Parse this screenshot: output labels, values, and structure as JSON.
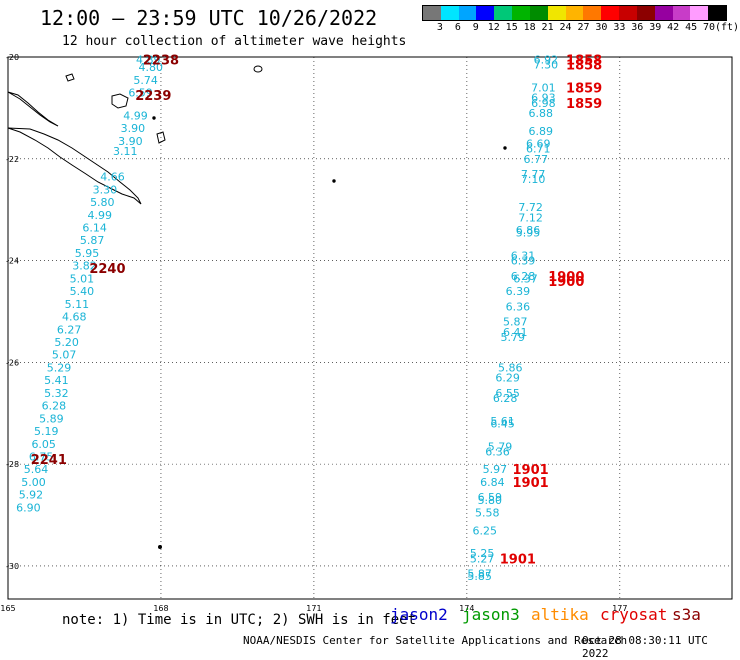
{
  "title": "12:00 — 23:59 UTC 10/26/2022",
  "subtitle": "12 hour collection of altimeter wave heights",
  "legend": {
    "colors": [
      "#777777",
      "#00e5ff",
      "#00a5ff",
      "#0000ff",
      "#00c878",
      "#00b400",
      "#008c00",
      "#f0e600",
      "#ffb400",
      "#ff7800",
      "#ff0000",
      "#c80000",
      "#8c0000",
      "#9600a0",
      "#c83cc8",
      "#ff9cff",
      "#000000"
    ],
    "tick_labels": [
      "3",
      "6",
      "9",
      "12",
      "15",
      "18",
      "21",
      "24",
      "27",
      "30",
      "33",
      "36",
      "39",
      "42",
      "45",
      "70",
      "(ft)"
    ]
  },
  "axes": {
    "lon_labels": [
      "165",
      "168",
      "171",
      "174",
      "177"
    ],
    "lat_labels": [
      "-20",
      "-22",
      "-24",
      "-26",
      "-28",
      "-30"
    ]
  },
  "west_track": {
    "color": "#1ab4d6",
    "points": [
      {
        "lon": 167.75,
        "lat": -20.05,
        "v": "4.89"
      },
      {
        "lon": 167.8,
        "lat": -20.2,
        "v": "4.80"
      },
      {
        "lon": 167.7,
        "lat": -20.45,
        "v": "5.74"
      },
      {
        "lon": 167.6,
        "lat": -20.7,
        "v": "6.59"
      },
      {
        "lon": 167.5,
        "lat": -21.15,
        "v": "4.99"
      },
      {
        "lon": 167.45,
        "lat": -21.4,
        "v": "3.90"
      },
      {
        "lon": 167.4,
        "lat": -21.65,
        "v": "3.90"
      },
      {
        "lon": 167.3,
        "lat": -21.85,
        "v": "3.11"
      },
      {
        "lon": 167.05,
        "lat": -22.35,
        "v": "4.66"
      },
      {
        "lon": 166.9,
        "lat": -22.6,
        "v": "3.30"
      },
      {
        "lon": 166.85,
        "lat": -22.85,
        "v": "5.80"
      },
      {
        "lon": 166.8,
        "lat": -23.1,
        "v": "4.99"
      },
      {
        "lon": 166.7,
        "lat": -23.35,
        "v": "6.14"
      },
      {
        "lon": 166.65,
        "lat": -23.6,
        "v": "5.87"
      },
      {
        "lon": 166.55,
        "lat": -23.85,
        "v": "5.95"
      },
      {
        "lon": 166.5,
        "lat": -24.1,
        "v": "3.82"
      },
      {
        "lon": 166.45,
        "lat": -24.35,
        "v": "5.01"
      },
      {
        "lon": 166.45,
        "lat": -24.6,
        "v": "5.40"
      },
      {
        "lon": 166.35,
        "lat": -24.85,
        "v": "5.11"
      },
      {
        "lon": 166.3,
        "lat": -25.1,
        "v": "4.68"
      },
      {
        "lon": 166.2,
        "lat": -25.35,
        "v": "6.27"
      },
      {
        "lon": 166.15,
        "lat": -25.6,
        "v": "5.20"
      },
      {
        "lon": 166.1,
        "lat": -25.85,
        "v": "5.07"
      },
      {
        "lon": 166.0,
        "lat": -26.1,
        "v": "5.29"
      },
      {
        "lon": 165.95,
        "lat": -26.35,
        "v": "5.41"
      },
      {
        "lon": 165.95,
        "lat": -26.6,
        "v": "5.32"
      },
      {
        "lon": 165.9,
        "lat": -26.85,
        "v": "6.28"
      },
      {
        "lon": 165.85,
        "lat": -27.1,
        "v": "5.89"
      },
      {
        "lon": 165.75,
        "lat": -27.35,
        "v": "5.19"
      },
      {
        "lon": 165.7,
        "lat": -27.6,
        "v": "6.05"
      },
      {
        "lon": 165.65,
        "lat": -27.85,
        "v": "6.75"
      },
      {
        "lon": 165.55,
        "lat": -28.1,
        "v": "5.64"
      },
      {
        "lon": 165.5,
        "lat": -28.35,
        "v": "5.00"
      },
      {
        "lon": 165.45,
        "lat": -28.6,
        "v": "5.92"
      },
      {
        "lon": 165.4,
        "lat": -28.85,
        "v": "6.90"
      }
    ],
    "times": [
      {
        "lon": 168.0,
        "lat": -20.05,
        "t": "2238"
      },
      {
        "lon": 167.85,
        "lat": -20.75,
        "t": "2239"
      },
      {
        "lon": 166.95,
        "lat": -24.15,
        "t": "2240"
      },
      {
        "lon": 165.8,
        "lat": -27.9,
        "t": "2241"
      }
    ],
    "time_color": "#8b0000"
  },
  "east_track": {
    "color": "#1ab4d6",
    "points": [
      {
        "lon": 175.55,
        "lat": -20.05,
        "v": "6.92"
      },
      {
        "lon": 175.55,
        "lat": -20.15,
        "v": "7.30"
      },
      {
        "lon": 175.5,
        "lat": -20.6,
        "v": "7.01"
      },
      {
        "lon": 175.5,
        "lat": -20.8,
        "v": "6.93"
      },
      {
        "lon": 175.5,
        "lat": -20.9,
        "v": "6.98"
      },
      {
        "lon": 175.45,
        "lat": -21.1,
        "v": "6.88"
      },
      {
        "lon": 175.45,
        "lat": -21.45,
        "v": "6.89"
      },
      {
        "lon": 175.4,
        "lat": -21.7,
        "v": "6.69"
      },
      {
        "lon": 175.4,
        "lat": -21.8,
        "v": "6.71"
      },
      {
        "lon": 175.35,
        "lat": -22.0,
        "v": "6.77"
      },
      {
        "lon": 175.3,
        "lat": -22.3,
        "v": "7.77"
      },
      {
        "lon": 175.3,
        "lat": -22.4,
        "v": "7.10"
      },
      {
        "lon": 175.25,
        "lat": -22.95,
        "v": "7.72"
      },
      {
        "lon": 175.25,
        "lat": -23.15,
        "v": "7.12"
      },
      {
        "lon": 175.2,
        "lat": -23.4,
        "v": "6.86"
      },
      {
        "lon": 175.2,
        "lat": -23.45,
        "v": "5.95"
      },
      {
        "lon": 175.1,
        "lat": -23.9,
        "v": "6.31"
      },
      {
        "lon": 175.1,
        "lat": -24.0,
        "v": "6.39"
      },
      {
        "lon": 175.1,
        "lat": -24.3,
        "v": "6.28"
      },
      {
        "lon": 175.15,
        "lat": -24.35,
        "v": "6.37"
      },
      {
        "lon": 175.0,
        "lat": -24.6,
        "v": "6.39"
      },
      {
        "lon": 175.0,
        "lat": -24.9,
        "v": "6.36"
      },
      {
        "lon": 174.95,
        "lat": -25.2,
        "v": "5.87"
      },
      {
        "lon": 174.95,
        "lat": -25.4,
        "v": "6.41"
      },
      {
        "lon": 174.9,
        "lat": -25.5,
        "v": "5.79"
      },
      {
        "lon": 174.85,
        "lat": -26.1,
        "v": "5.86"
      },
      {
        "lon": 174.8,
        "lat": -26.3,
        "v": "6.29"
      },
      {
        "lon": 174.8,
        "lat": -26.6,
        "v": "6.55"
      },
      {
        "lon": 174.75,
        "lat": -26.7,
        "v": "6.28"
      },
      {
        "lon": 174.7,
        "lat": -27.15,
        "v": "5.61"
      },
      {
        "lon": 174.7,
        "lat": -27.2,
        "v": "6.45"
      },
      {
        "lon": 174.65,
        "lat": -27.65,
        "v": "5.79"
      },
      {
        "lon": 174.6,
        "lat": -27.75,
        "v": "6.36"
      },
      {
        "lon": 174.55,
        "lat": -28.1,
        "v": "5.97"
      },
      {
        "lon": 174.5,
        "lat": -28.35,
        "v": "6.84"
      },
      {
        "lon": 174.45,
        "lat": -28.65,
        "v": "6.59"
      },
      {
        "lon": 174.45,
        "lat": -28.7,
        "v": "5.80"
      },
      {
        "lon": 174.4,
        "lat": -28.95,
        "v": "5.58"
      },
      {
        "lon": 174.35,
        "lat": -29.3,
        "v": "6.25"
      },
      {
        "lon": 174.3,
        "lat": -29.75,
        "v": "5.25"
      },
      {
        "lon": 174.3,
        "lat": -29.85,
        "v": "5.27"
      },
      {
        "lon": 174.25,
        "lat": -30.15,
        "v": "5.87"
      },
      {
        "lon": 174.25,
        "lat": -30.2,
        "v": "5.85"
      }
    ],
    "times": [
      {
        "lon": 176.3,
        "lat": -20.05,
        "t": "1858"
      },
      {
        "lon": 176.3,
        "lat": -20.15,
        "t": "1858"
      },
      {
        "lon": 176.3,
        "lat": -20.6,
        "t": "1859"
      },
      {
        "lon": 176.3,
        "lat": -20.9,
        "t": "1859"
      },
      {
        "lon": 175.95,
        "lat": -24.3,
        "t": "1900"
      },
      {
        "lon": 175.95,
        "lat": -24.4,
        "t": "1900"
      },
      {
        "lon": 175.25,
        "lat": -28.1,
        "t": "1901"
      },
      {
        "lon": 175.25,
        "lat": -28.35,
        "t": "1901"
      },
      {
        "lon": 175.0,
        "lat": -29.85,
        "t": "1901"
      }
    ],
    "time_color": "#e00000"
  },
  "note": "note: 1) Time is in UTC; 2) SWH is in feet",
  "missions": [
    {
      "name": "jason2",
      "color": "#0000cc"
    },
    {
      "name": "jason3",
      "color": "#009a00"
    },
    {
      "name": "altika",
      "color": "#ff8c00"
    },
    {
      "name": "cryosat",
      "color": "#e00000"
    },
    {
      "name": "s3a",
      "color": "#8b0000"
    }
  ],
  "footer": {
    "credit": "NOAA/NESDIS Center for Satellite Applications and Research",
    "timestamp": "Oct 28 08:30:11 UTC 2022"
  }
}
